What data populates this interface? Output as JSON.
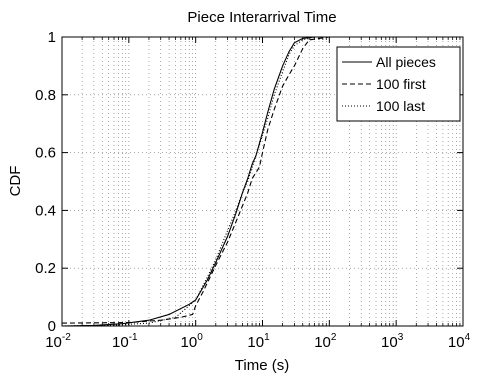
{
  "chart_data": {
    "type": "line",
    "title": "Piece Interarrival Time",
    "xlabel": "Time (s)",
    "ylabel": "CDF",
    "xscale": "log",
    "xlim": [
      0.01,
      10000
    ],
    "ylim": [
      0,
      1
    ],
    "grid": true,
    "legend_position": "top-right",
    "x_ticks": [
      {
        "value": 0.01,
        "base": "10",
        "exp": "-2"
      },
      {
        "value": 0.1,
        "base": "10",
        "exp": "-1"
      },
      {
        "value": 1,
        "base": "10",
        "exp": "0"
      },
      {
        "value": 10,
        "base": "10",
        "exp": "1"
      },
      {
        "value": 100,
        "base": "10",
        "exp": "2"
      },
      {
        "value": 1000,
        "base": "10",
        "exp": "3"
      },
      {
        "value": 10000,
        "base": "10",
        "exp": "4"
      }
    ],
    "y_ticks": [
      {
        "value": 0,
        "label": "0"
      },
      {
        "value": 0.2,
        "label": "0.2"
      },
      {
        "value": 0.4,
        "label": "0.4"
      },
      {
        "value": 0.6,
        "label": "0.6"
      },
      {
        "value": 0.8,
        "label": "0.8"
      },
      {
        "value": 1,
        "label": "1"
      }
    ],
    "series": [
      {
        "name": "All pieces",
        "style": "solid",
        "color": "#000000",
        "points": [
          [
            0.01,
            0
          ],
          [
            0.03,
            0.002
          ],
          [
            0.08,
            0.008
          ],
          [
            0.2,
            0.02
          ],
          [
            0.4,
            0.04
          ],
          [
            0.8,
            0.075
          ],
          [
            1.0,
            0.09
          ],
          [
            1.5,
            0.16
          ],
          [
            2.0,
            0.22
          ],
          [
            3.0,
            0.31
          ],
          [
            4.0,
            0.39
          ],
          [
            5.0,
            0.46
          ],
          [
            6.0,
            0.51
          ],
          [
            7.0,
            0.56
          ],
          [
            8.0,
            0.59
          ],
          [
            10.0,
            0.67
          ],
          [
            12.0,
            0.74
          ],
          [
            15.0,
            0.82
          ],
          [
            20.0,
            0.9
          ],
          [
            25.0,
            0.95
          ],
          [
            30.0,
            0.98
          ],
          [
            40.0,
            0.995
          ],
          [
            60.0,
            1.0
          ],
          [
            100.0,
            1.0
          ]
        ]
      },
      {
        "name": "100 first",
        "style": "dashed",
        "color": "#000000",
        "points": [
          [
            0.01,
            0.01
          ],
          [
            0.1,
            0.012
          ],
          [
            0.3,
            0.02
          ],
          [
            0.6,
            0.03
          ],
          [
            0.9,
            0.04
          ],
          [
            1.0,
            0.07
          ],
          [
            1.3,
            0.12
          ],
          [
            2.0,
            0.21
          ],
          [
            3.0,
            0.29
          ],
          [
            4.0,
            0.36
          ],
          [
            6.0,
            0.46
          ],
          [
            7.0,
            0.51
          ],
          [
            9.0,
            0.55
          ],
          [
            10.0,
            0.6
          ],
          [
            12.0,
            0.68
          ],
          [
            15.0,
            0.75
          ],
          [
            20.0,
            0.83
          ],
          [
            25.0,
            0.87
          ],
          [
            30.0,
            0.9
          ],
          [
            40.0,
            0.96
          ],
          [
            50.0,
            0.99
          ],
          [
            70.0,
            0.995
          ],
          [
            100.0,
            1.0
          ]
        ]
      },
      {
        "name": "100 last",
        "style": "dotted",
        "color": "#000000",
        "points": [
          [
            0.01,
            0
          ],
          [
            0.05,
            0.002
          ],
          [
            0.2,
            0.01
          ],
          [
            0.5,
            0.03
          ],
          [
            1.0,
            0.09
          ],
          [
            1.5,
            0.17
          ],
          [
            2.0,
            0.23
          ],
          [
            3.0,
            0.33
          ],
          [
            4.0,
            0.4
          ],
          [
            5.0,
            0.46
          ],
          [
            6.0,
            0.5
          ],
          [
            8.0,
            0.59
          ],
          [
            10.0,
            0.66
          ],
          [
            12.0,
            0.72
          ],
          [
            15.0,
            0.8
          ],
          [
            20.0,
            0.88
          ],
          [
            25.0,
            0.94
          ],
          [
            30.0,
            0.97
          ],
          [
            40.0,
            0.99
          ],
          [
            60.0,
            1.0
          ],
          [
            100.0,
            1.0
          ]
        ]
      }
    ]
  }
}
